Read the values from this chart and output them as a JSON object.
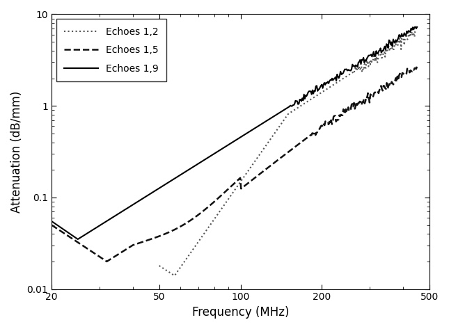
{
  "title": "",
  "xlabel": "Frequency (MHz)",
  "ylabel": "Attenuation (dB/mm)",
  "xlim": [
    20,
    500
  ],
  "ylim": [
    0.01,
    10
  ],
  "legend": [
    "Echoes 1,2",
    "Echoes 1,5",
    "Echoes 1,9"
  ],
  "background_color": "#ffffff",
  "curve_echoes12": {
    "style": "dotted",
    "linewidth": 1.5,
    "color": "#555555"
  },
  "curve_echoes15": {
    "style": "dashed",
    "linewidth": 1.8,
    "color": "#111111"
  },
  "curve_echoes19": {
    "style": "solid",
    "linewidth": 1.5,
    "color": "#000000"
  }
}
